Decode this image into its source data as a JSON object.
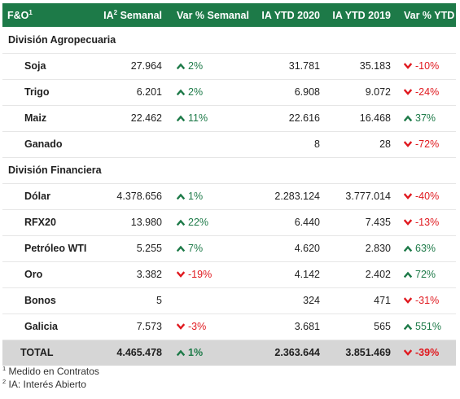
{
  "header": {
    "col1": "F&O",
    "col1_sup": "1",
    "col2_pre": "IA",
    "col2_sup": "2",
    "col2_post": " Semanal",
    "col3": "Var % Semanal",
    "col4": "IA YTD 2020",
    "col5": "IA YTD 2019",
    "col6": "Var % YTD"
  },
  "sections": [
    {
      "title": "División Agropecuaria",
      "rows": [
        {
          "name": "Soja",
          "ia": "27.964",
          "var": "2%",
          "var_dir": "up",
          "ytd2020": "31.781",
          "ytd2019": "35.183",
          "var_ytd": "-10%",
          "var_ytd_dir": "down"
        },
        {
          "name": "Trigo",
          "ia": "6.201",
          "var": "2%",
          "var_dir": "up",
          "ytd2020": "6.908",
          "ytd2019": "9.072",
          "var_ytd": "-24%",
          "var_ytd_dir": "down"
        },
        {
          "name": "Maiz",
          "ia": "22.462",
          "var": "11%",
          "var_dir": "up",
          "ytd2020": "22.616",
          "ytd2019": "16.468",
          "var_ytd": "37%",
          "var_ytd_dir": "up"
        },
        {
          "name": "Ganado",
          "ia": "",
          "var": "",
          "var_dir": "",
          "ytd2020": "8",
          "ytd2019": "28",
          "var_ytd": "-72%",
          "var_ytd_dir": "down"
        }
      ]
    },
    {
      "title": "División Financiera",
      "rows": [
        {
          "name": "Dólar",
          "ia": "4.378.656",
          "var": "1%",
          "var_dir": "up",
          "ytd2020": "2.283.124",
          "ytd2019": "3.777.014",
          "var_ytd": "-40%",
          "var_ytd_dir": "down"
        },
        {
          "name": "RFX20",
          "ia": "13.980",
          "var": "22%",
          "var_dir": "up",
          "ytd2020": "6.440",
          "ytd2019": "7.435",
          "var_ytd": "-13%",
          "var_ytd_dir": "down"
        },
        {
          "name": "Petróleo WTI",
          "ia": "5.255",
          "var": "7%",
          "var_dir": "up",
          "ytd2020": "4.620",
          "ytd2019": "2.830",
          "var_ytd": "63%",
          "var_ytd_dir": "up"
        },
        {
          "name": "Oro",
          "ia": "3.382",
          "var": "-19%",
          "var_dir": "down",
          "ytd2020": "4.142",
          "ytd2019": "2.402",
          "var_ytd": "72%",
          "var_ytd_dir": "up"
        },
        {
          "name": "Bonos",
          "ia": "5",
          "var": "",
          "var_dir": "",
          "ytd2020": "324",
          "ytd2019": "471",
          "var_ytd": "-31%",
          "var_ytd_dir": "down"
        },
        {
          "name": "Galicia",
          "ia": "7.573",
          "var": "-3%",
          "var_dir": "down",
          "ytd2020": "3.681",
          "ytd2019": "565",
          "var_ytd": "551%",
          "var_ytd_dir": "up"
        }
      ]
    }
  ],
  "total": {
    "name": "TOTAL",
    "ia": "4.465.478",
    "var": "1%",
    "var_dir": "up",
    "ytd2020": "2.363.644",
    "ytd2019": "3.851.469",
    "var_ytd": "-39%",
    "var_ytd_dir": "down"
  },
  "footnotes": [
    {
      "sup": "1",
      "text": " Medido en Contratos"
    },
    {
      "sup": "2",
      "text": " IA: Interés Abierto"
    }
  ],
  "colors": {
    "header_bg": "#1d7a48",
    "up": "#1d7a48",
    "down": "#e0191f",
    "total_bg": "#d6d6d6"
  },
  "icons": {
    "up": "chevron-up-icon",
    "down": "chevron-down-icon"
  }
}
